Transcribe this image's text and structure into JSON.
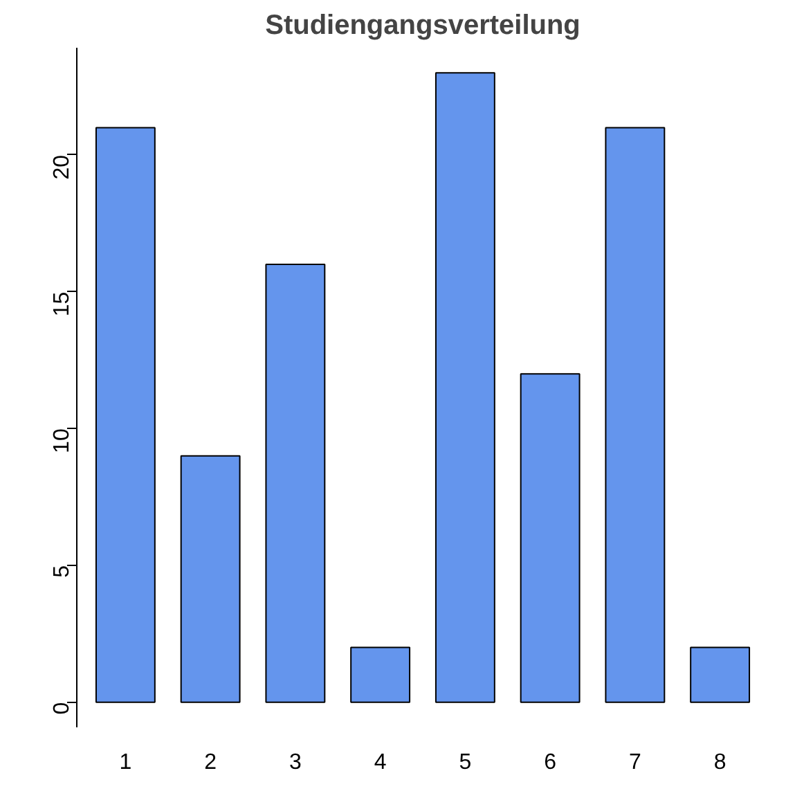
{
  "chart_data": {
    "type": "bar",
    "title": "Studiengangsverteilung",
    "categories": [
      "1",
      "2",
      "3",
      "4",
      "5",
      "6",
      "7",
      "8"
    ],
    "values": [
      21,
      9,
      16,
      2,
      23,
      12,
      21,
      2
    ],
    "color": "#6495ed",
    "ylim": [
      -0.92,
      23.92
    ],
    "yticks": [
      0,
      5,
      10,
      15,
      20
    ]
  }
}
